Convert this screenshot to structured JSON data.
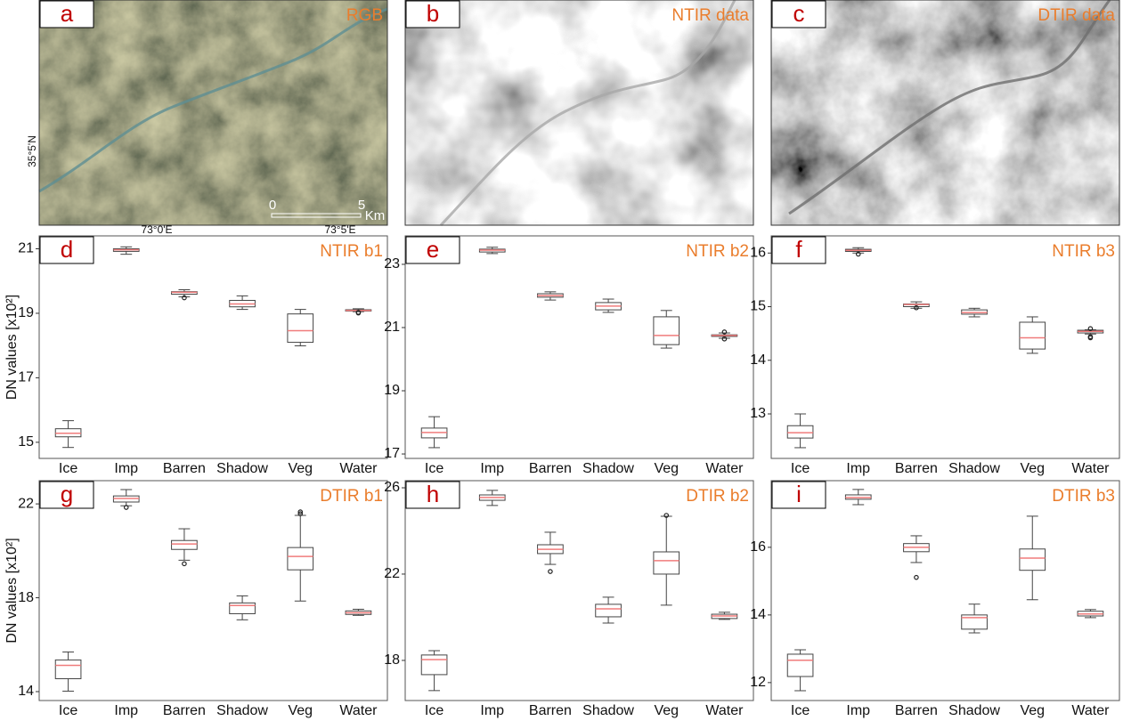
{
  "images": [
    {
      "letter": "a",
      "title": "RGB",
      "lat_label": "35°5'N",
      "lon_labels": [
        "73°0'E",
        "73°5'E"
      ],
      "scale": {
        "labels": [
          0,
          5
        ],
        "unit": "Km"
      }
    },
    {
      "letter": "b",
      "title": "NTIR data"
    },
    {
      "letter": "c",
      "title": "DTIR data"
    }
  ],
  "chart_data": [
    {
      "type": "box",
      "letter": "d",
      "title": "NTIR b1",
      "ylabel": "DN values [x10²]",
      "categories": [
        "Ice",
        "Imp",
        "Barren",
        "Shadow",
        "Veg",
        "Water"
      ],
      "boxes": [
        {
          "min": 14.84,
          "q1": 15.17,
          "median": 15.28,
          "q3": 15.42,
          "max": 15.67,
          "outliers": []
        },
        {
          "min": 20.83,
          "q1": 20.92,
          "median": 20.97,
          "q3": 21.0,
          "max": 21.06,
          "outliers": []
        },
        {
          "min": 19.51,
          "q1": 19.59,
          "median": 19.65,
          "q3": 19.67,
          "max": 19.73,
          "outliers": [
            19.48
          ]
        },
        {
          "min": 19.12,
          "q1": 19.2,
          "median": 19.29,
          "q3": 19.4,
          "max": 19.54,
          "outliers": []
        },
        {
          "min": 17.99,
          "q1": 18.1,
          "median": 18.46,
          "q3": 18.98,
          "max": 19.12,
          "outliers": []
        },
        {
          "min": 19.05,
          "q1": 19.07,
          "median": 19.09,
          "q3": 19.11,
          "max": 19.14,
          "outliers": [
            19.03,
            19.01
          ]
        }
      ],
      "ylim": [
        14.5,
        21.4
      ],
      "yticks": [
        15,
        17,
        19,
        21
      ]
    },
    {
      "type": "box",
      "letter": "e",
      "title": "NTIR b2",
      "categories": [
        "Ice",
        "Imp",
        "Barren",
        "Shadow",
        "Veg",
        "Water"
      ],
      "boxes": [
        {
          "min": 17.2,
          "q1": 17.51,
          "median": 17.68,
          "q3": 17.82,
          "max": 18.18,
          "outliers": []
        },
        {
          "min": 23.34,
          "q1": 23.39,
          "median": 23.45,
          "q3": 23.48,
          "max": 23.54,
          "outliers": []
        },
        {
          "min": 21.87,
          "q1": 21.96,
          "median": 22.01,
          "q3": 22.07,
          "max": 22.13,
          "outliers": []
        },
        {
          "min": 21.48,
          "q1": 21.56,
          "median": 21.68,
          "q3": 21.79,
          "max": 21.9,
          "outliers": []
        },
        {
          "min": 20.35,
          "q1": 20.46,
          "median": 20.75,
          "q3": 21.34,
          "max": 21.54,
          "outliers": []
        },
        {
          "min": 20.66,
          "q1": 20.72,
          "median": 20.75,
          "q3": 20.77,
          "max": 20.83,
          "outliers": [
            20.86,
            20.64
          ]
        }
      ],
      "ylim": [
        16.86,
        23.9
      ],
      "yticks": [
        17,
        19,
        21,
        23
      ]
    },
    {
      "type": "box",
      "letter": "f",
      "title": "NTIR b3",
      "categories": [
        "Ice",
        "Imp",
        "Barren",
        "Shadow",
        "Veg",
        "Water"
      ],
      "boxes": [
        {
          "min": 12.37,
          "q1": 12.55,
          "median": 12.65,
          "q3": 12.78,
          "max": 13.0,
          "outliers": []
        },
        {
          "min": 16.0,
          "q1": 16.03,
          "median": 16.05,
          "q3": 16.07,
          "max": 16.1,
          "outliers": [
            15.98
          ]
        },
        {
          "min": 14.97,
          "q1": 15.0,
          "median": 15.04,
          "q3": 15.05,
          "max": 15.09,
          "outliers": [
            14.98
          ]
        },
        {
          "min": 14.81,
          "q1": 14.86,
          "median": 14.89,
          "q3": 14.94,
          "max": 14.97,
          "outliers": []
        },
        {
          "min": 14.13,
          "q1": 14.21,
          "median": 14.42,
          "q3": 14.71,
          "max": 14.81,
          "outliers": []
        },
        {
          "min": 14.49,
          "q1": 14.51,
          "median": 14.54,
          "q3": 14.56,
          "max": 14.57,
          "outliers": [
            14.59,
            14.42,
            14.44
          ]
        }
      ],
      "ylim": [
        12.17,
        16.32
      ],
      "yticks": [
        13,
        14,
        15,
        16
      ]
    },
    {
      "type": "box",
      "letter": "g",
      "title": "DTIR b1",
      "ylabel": "DN values [x10²]",
      "categories": [
        "Ice",
        "Imp",
        "Barren",
        "Shadow",
        "Veg",
        "Water"
      ],
      "boxes": [
        {
          "min": 14.02,
          "q1": 14.55,
          "median": 15.12,
          "q3": 15.35,
          "max": 15.69,
          "outliers": []
        },
        {
          "min": 21.92,
          "q1": 22.08,
          "median": 22.23,
          "q3": 22.34,
          "max": 22.61,
          "outliers": [
            21.85
          ]
        },
        {
          "min": 19.6,
          "q1": 20.06,
          "median": 20.29,
          "q3": 20.44,
          "max": 20.94,
          "outliers": [
            19.45
          ]
        },
        {
          "min": 17.06,
          "q1": 17.32,
          "median": 17.67,
          "q3": 17.78,
          "max": 18.08,
          "outliers": []
        },
        {
          "min": 17.86,
          "q1": 19.19,
          "median": 19.76,
          "q3": 20.14,
          "max": 21.51,
          "outliers": [
            21.58,
            21.66
          ]
        },
        {
          "min": 17.25,
          "q1": 17.29,
          "median": 17.36,
          "q3": 17.44,
          "max": 17.51,
          "outliers": []
        }
      ],
      "ylim": [
        13.62,
        22.99
      ],
      "yticks": [
        14,
        18,
        22
      ]
    },
    {
      "type": "box",
      "letter": "h",
      "title": "DTIR b2",
      "categories": [
        "Ice",
        "Imp",
        "Barren",
        "Shadow",
        "Veg",
        "Water"
      ],
      "boxes": [
        {
          "min": 16.6,
          "q1": 17.34,
          "median": 18.04,
          "q3": 18.25,
          "max": 18.45,
          "outliers": []
        },
        {
          "min": 25.18,
          "q1": 25.42,
          "median": 25.55,
          "q3": 25.67,
          "max": 25.88,
          "outliers": []
        },
        {
          "min": 22.45,
          "q1": 22.95,
          "median": 23.15,
          "q3": 23.36,
          "max": 23.94,
          "outliers": [
            22.12
          ]
        },
        {
          "min": 19.73,
          "q1": 20.02,
          "median": 20.39,
          "q3": 20.6,
          "max": 20.93,
          "outliers": []
        },
        {
          "min": 20.56,
          "q1": 22.0,
          "median": 22.62,
          "q3": 23.03,
          "max": 24.68,
          "outliers": [
            24.72
          ]
        },
        {
          "min": 19.9,
          "q1": 19.94,
          "median": 20.06,
          "q3": 20.14,
          "max": 20.23,
          "outliers": []
        }
      ],
      "ylim": [
        16.14,
        26.33
      ],
      "yticks": [
        18,
        22,
        26
      ]
    },
    {
      "type": "box",
      "letter": "i",
      "title": "DTIR b3",
      "categories": [
        "Ice",
        "Imp",
        "Barren",
        "Shadow",
        "Veg",
        "Water"
      ],
      "boxes": [
        {
          "min": 11.76,
          "q1": 12.18,
          "median": 12.66,
          "q3": 12.84,
          "max": 12.97,
          "outliers": []
        },
        {
          "min": 17.26,
          "q1": 17.42,
          "median": 17.47,
          "q3": 17.55,
          "max": 17.71,
          "outliers": []
        },
        {
          "min": 15.55,
          "q1": 15.87,
          "median": 16.0,
          "q3": 16.11,
          "max": 16.34,
          "outliers": [
            15.11
          ]
        },
        {
          "min": 13.47,
          "q1": 13.58,
          "median": 13.92,
          "q3": 14.0,
          "max": 14.32,
          "outliers": []
        },
        {
          "min": 14.45,
          "q1": 15.32,
          "median": 15.68,
          "q3": 15.95,
          "max": 16.92,
          "outliers": []
        },
        {
          "min": 13.92,
          "q1": 13.97,
          "median": 14.03,
          "q3": 14.11,
          "max": 14.16,
          "outliers": []
        }
      ],
      "ylim": [
        11.47,
        17.97
      ],
      "yticks": [
        12,
        14,
        16
      ]
    }
  ]
}
